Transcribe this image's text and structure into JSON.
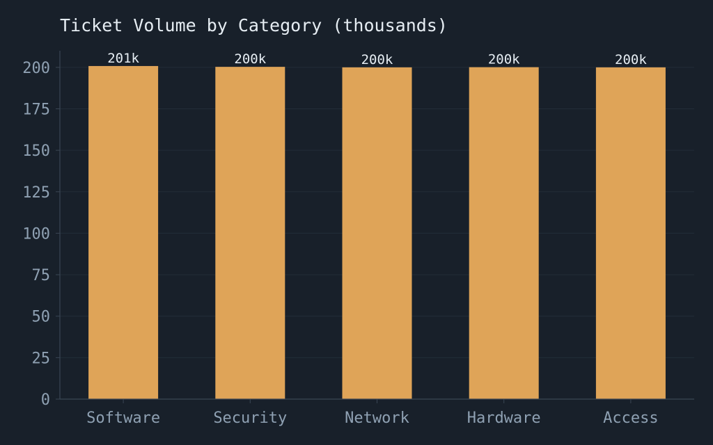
{
  "chart_data": {
    "type": "bar",
    "title": "Ticket Volume by Category (thousands)",
    "xlabel": "",
    "ylabel": "",
    "categories": [
      "Software",
      "Security",
      "Network",
      "Hardware",
      "Access"
    ],
    "values": [
      200.8,
      200.3,
      200.0,
      200.1,
      200.0
    ],
    "data_labels": [
      "201k",
      "200k",
      "200k",
      "200k",
      "200k"
    ],
    "ylim": [
      0,
      210
    ],
    "yticks": [
      0,
      25,
      50,
      75,
      100,
      125,
      150,
      175,
      200
    ],
    "grid": true,
    "legend": "none",
    "colors": {
      "bar": "#dfa458",
      "background": "#18202a",
      "grid": "#222d38",
      "axis": "#3a4654",
      "tick_text": "#8fa1b3",
      "title_text": "#e6edf3",
      "label_text": "#e6edf3"
    }
  }
}
